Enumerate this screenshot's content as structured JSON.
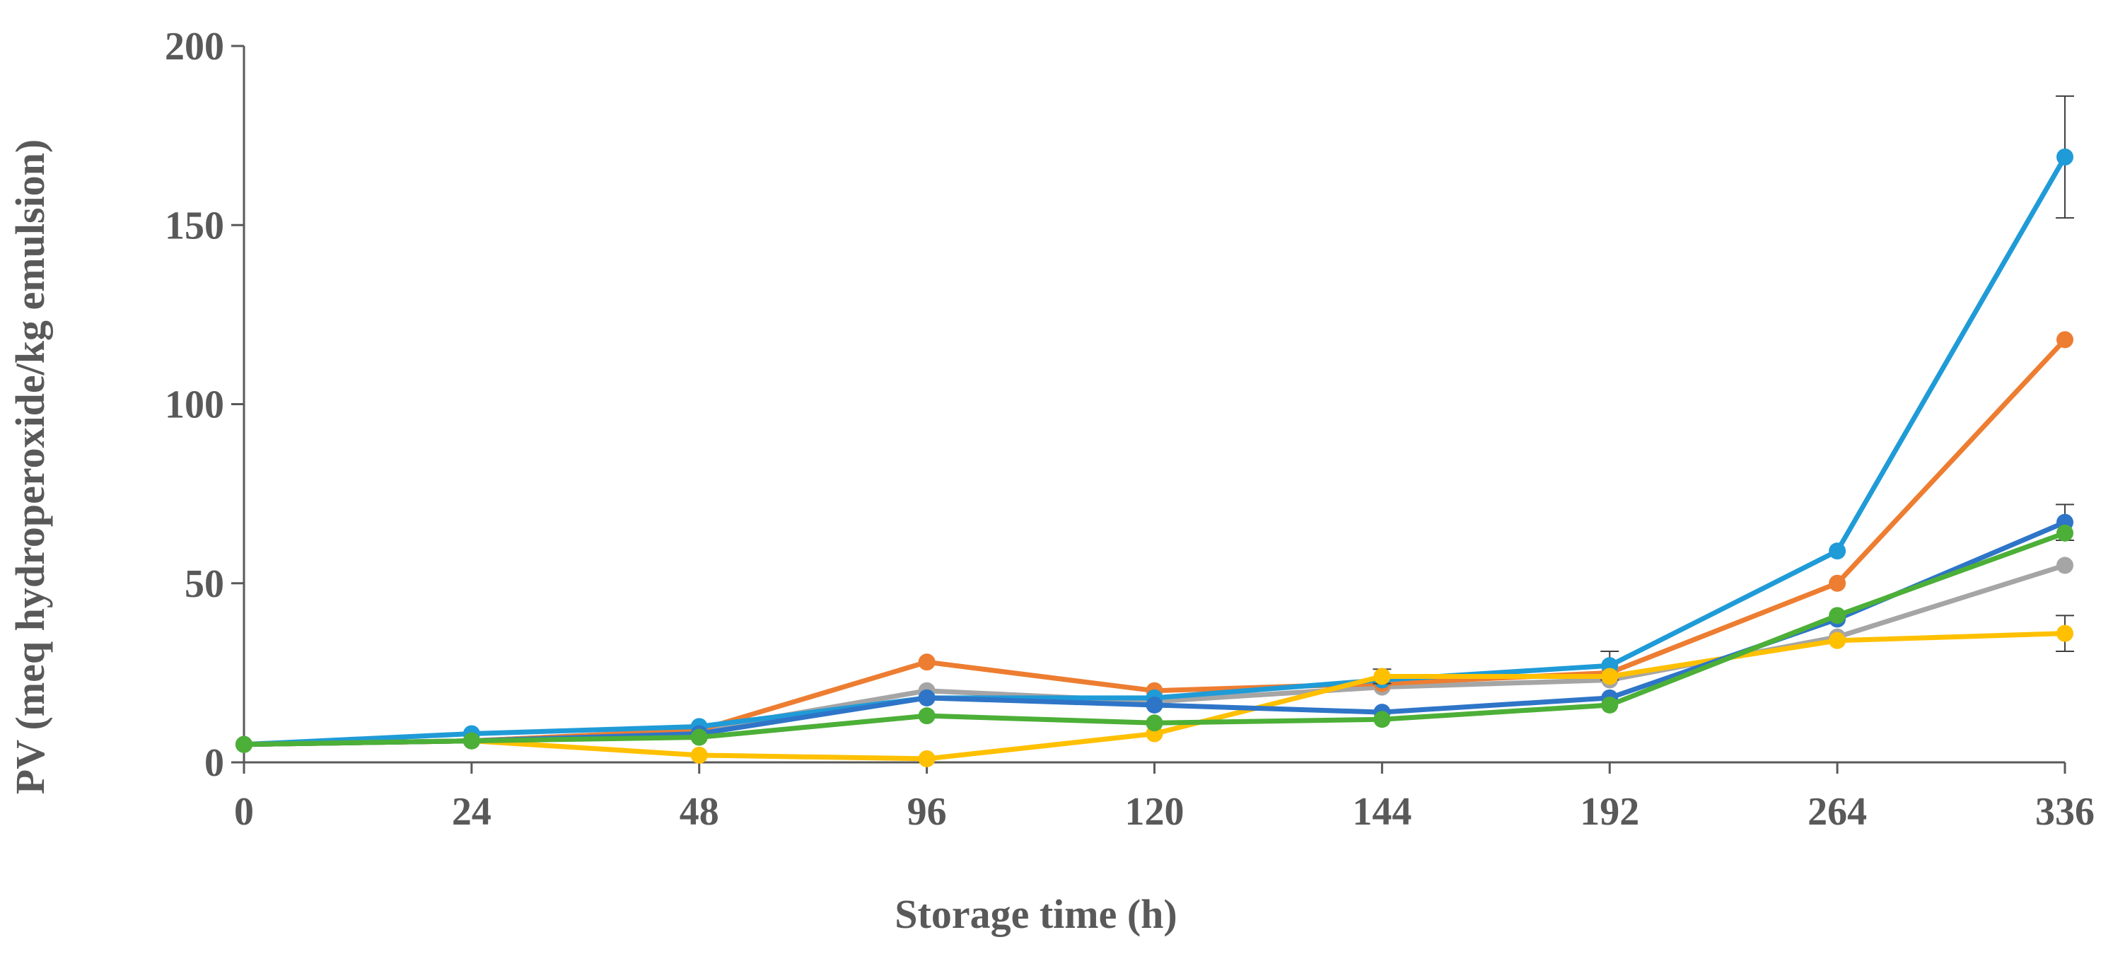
{
  "chart_data": {
    "type": "line",
    "xlabel": "Storage time (h)",
    "ylabel": "PV (meq hydroperoxide/kg emulsion)",
    "categories": [
      "0",
      "24",
      "48",
      "96",
      "120",
      "144",
      "192",
      "264",
      "336"
    ],
    "ylim": [
      0,
      200
    ],
    "yticks": [
      "0",
      "50",
      "100",
      "150",
      "200"
    ],
    "grid": false,
    "legend": "none",
    "series": [
      {
        "color": "#A5A5A5",
        "values": [
          5,
          6,
          9,
          20,
          17,
          21,
          23,
          35,
          55
        ],
        "errors": [
          0,
          0,
          0,
          0,
          0,
          0,
          0,
          0,
          0
        ]
      },
      {
        "color": "#ED7D31",
        "values": [
          5,
          6,
          9,
          28,
          20,
          22,
          25,
          50,
          118
        ],
        "errors": [
          0,
          0,
          0,
          0,
          0,
          0,
          0,
          0,
          0
        ]
      },
      {
        "color": "#1F9BD7",
        "values": [
          5,
          8,
          10,
          18,
          18,
          23,
          27,
          59,
          169
        ],
        "errors": [
          0,
          0,
          0,
          0,
          0,
          0,
          4,
          0,
          17
        ]
      },
      {
        "color": "#FFC000",
        "values": [
          5,
          6,
          2,
          1,
          8,
          24,
          24,
          34,
          36
        ],
        "errors": [
          0,
          0,
          0,
          0,
          0,
          2,
          0,
          0,
          5
        ]
      },
      {
        "color": "#2E75C8",
        "values": [
          5,
          6,
          8,
          18,
          16,
          14,
          18,
          40,
          67
        ],
        "errors": [
          0,
          0,
          0,
          0,
          0,
          0,
          0,
          0,
          5
        ]
      },
      {
        "color": "#4CAF37",
        "values": [
          5,
          6,
          7,
          13,
          11,
          12,
          16,
          41,
          64
        ],
        "errors": [
          0,
          0,
          0,
          0,
          0,
          0,
          0,
          0,
          0
        ]
      }
    ]
  }
}
